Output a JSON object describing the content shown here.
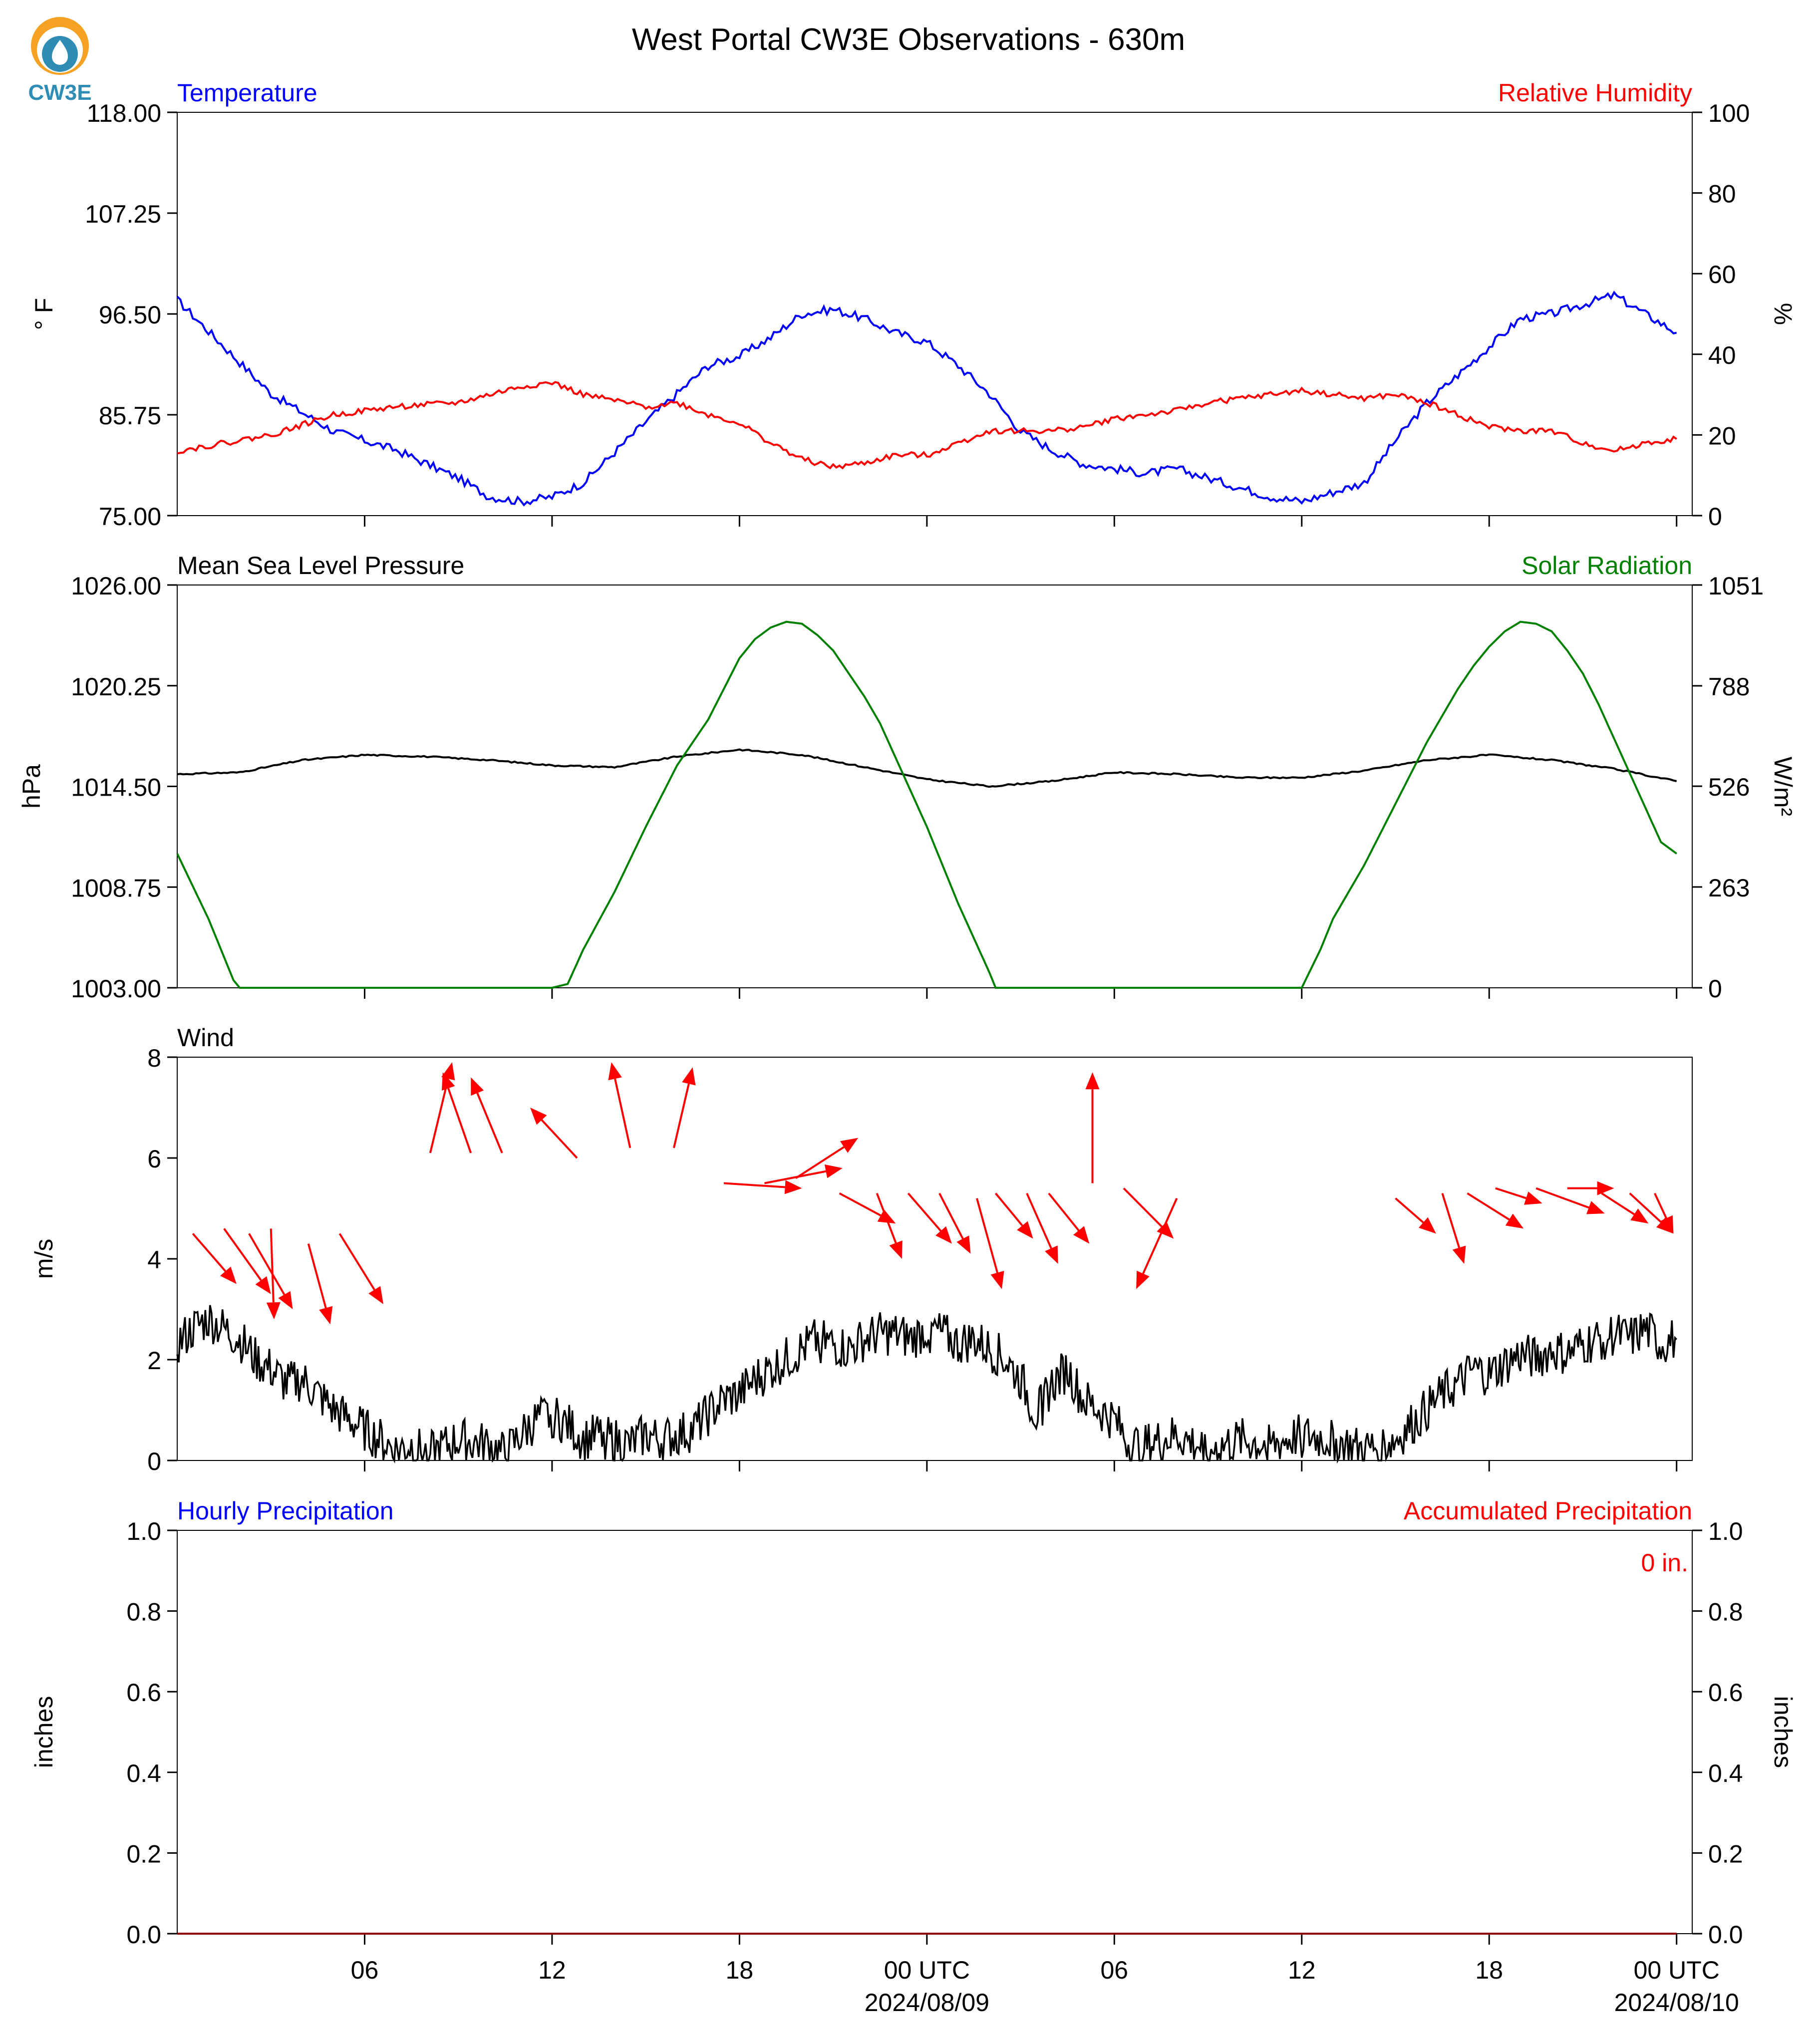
{
  "title": "West Portal CW3E Observations - 630m",
  "logo_text": "CW3E",
  "x_axis": {
    "tick_labels": [
      "06",
      "12",
      "18",
      "00 UTC",
      "06",
      "12",
      "18",
      "00 UTC"
    ],
    "date_labels": [
      "2024/08/09",
      "2024/08/10"
    ]
  },
  "chart_data": [
    {
      "type": "line",
      "title_left": "Temperature",
      "title_right": "Relative Humidity",
      "ylabel_left": "° F",
      "ylabel_right": "%",
      "ylim_left": [
        75.0,
        118.0
      ],
      "ylim_right": [
        0,
        100
      ],
      "yticks_left": [
        "75.00",
        "85.75",
        "96.50",
        "107.25",
        "118.00"
      ],
      "yticks_right": [
        "0",
        "20",
        "40",
        "60",
        "80",
        "100"
      ],
      "x_hours": [
        0,
        3,
        5,
        7,
        9,
        10,
        11,
        12,
        13,
        15,
        16,
        17,
        18,
        19,
        20,
        21,
        22,
        23,
        24,
        25,
        26,
        27,
        28,
        29,
        30,
        31,
        32,
        33,
        34,
        35,
        36,
        37,
        38,
        39,
        40,
        41,
        42,
        43,
        44,
        45,
        46,
        47,
        48
      ],
      "series": [
        {
          "name": "Temperature",
          "color": "#0000ff",
          "values": [
            98.0,
            88.0,
            84.0,
            82.0,
            79.0,
            77.0,
            76.5,
            77.0,
            78.5,
            85.0,
            88.0,
            91.0,
            92.0,
            94.0,
            96.5,
            97.0,
            96.0,
            94.5,
            93.5,
            91.0,
            88.0,
            84.0,
            82.0,
            80.5,
            80.0,
            79.5,
            80.0,
            79.0,
            78.0,
            77.0,
            76.5,
            77.5,
            78.5,
            83.0,
            87.0,
            90.0,
            93.0,
            96.0,
            96.5,
            97.5,
            98.5,
            96.5,
            94.5
          ]
        },
        {
          "name": "Relative Humidity",
          "color": "#ff0000",
          "values": [
            16,
            20,
            25,
            27,
            28,
            30,
            32,
            33,
            30,
            27,
            28,
            25,
            23,
            18,
            14,
            12,
            13,
            15,
            15,
            18,
            21,
            21,
            21,
            22,
            24,
            25,
            26,
            28,
            29,
            30,
            31,
            30,
            29,
            30,
            28,
            25,
            22,
            21,
            21,
            18,
            16,
            18,
            19
          ]
        }
      ]
    },
    {
      "type": "line",
      "title_left": "Mean Sea Level Pressure",
      "title_right": "Solar Radiation",
      "ylabel_left": "hPa",
      "ylabel_right": "W/m²",
      "ylim_left": [
        1003.0,
        1026.0
      ],
      "ylim_right": [
        0,
        1051
      ],
      "yticks_left": [
        "1003.00",
        "1008.75",
        "1014.50",
        "1020.25",
        "1026.00"
      ],
      "yticks_right": [
        "0",
        "263",
        "526",
        "788",
        "1051"
      ],
      "series": [
        {
          "name": "Mean Sea Level Pressure",
          "color": "#000000",
          "x_hours": [
            0,
            2,
            4,
            6,
            8,
            10,
            12,
            14,
            16,
            18,
            20,
            22,
            24,
            26,
            28,
            30,
            32,
            34,
            36,
            38,
            40,
            42,
            44,
            46,
            48
          ],
          "values": [
            1015.2,
            1015.3,
            1016.0,
            1016.3,
            1016.2,
            1016.0,
            1015.7,
            1015.6,
            1016.2,
            1016.6,
            1016.3,
            1015.6,
            1014.9,
            1014.5,
            1014.8,
            1015.3,
            1015.2,
            1015.0,
            1015.0,
            1015.4,
            1016.0,
            1016.3,
            1016.0,
            1015.5,
            1014.8
          ]
        },
        {
          "name": "Solar Radiation",
          "color": "#008000",
          "x_hours": [
            0,
            1,
            1.8,
            2,
            12,
            12.5,
            13,
            14,
            15,
            16,
            17,
            17.5,
            18,
            18.5,
            19,
            19.5,
            20,
            20.5,
            21,
            21.5,
            22,
            22.5,
            23,
            23.5,
            24,
            24.5,
            25,
            25.5,
            26,
            26.2,
            36,
            36.6,
            37,
            38,
            39,
            40,
            41,
            41.5,
            42,
            42.5,
            43,
            43.5,
            44,
            44.5,
            45,
            45.5,
            46,
            46.5,
            47,
            47.5,
            48
          ],
          "values": [
            350,
            180,
            20,
            0,
            0,
            10,
            100,
            250,
            420,
            580,
            700,
            780,
            860,
            910,
            940,
            955,
            950,
            920,
            880,
            820,
            760,
            690,
            600,
            510,
            420,
            320,
            220,
            130,
            40,
            0,
            0,
            100,
            180,
            320,
            480,
            640,
            780,
            840,
            890,
            930,
            955,
            950,
            930,
            880,
            820,
            740,
            650,
            560,
            470,
            380,
            350
          ]
        }
      ]
    },
    {
      "type": "line",
      "title_left": "Wind",
      "ylabel_left": "m/s",
      "ylim_left": [
        0,
        8
      ],
      "yticks_left": [
        "0",
        "2",
        "4",
        "6",
        "8"
      ],
      "series": [
        {
          "name": "Wind Speed",
          "color": "#000000",
          "x_hours": [
            0,
            0.5,
            1,
            1.5,
            2,
            2.5,
            3,
            3.5,
            4,
            4.5,
            5,
            5.5,
            6,
            6.5,
            7,
            7.5,
            8,
            9,
            10,
            10.5,
            11,
            11.5,
            12,
            12.5,
            13,
            13.5,
            14,
            14.5,
            15,
            15.5,
            16,
            16.5,
            17,
            17.5,
            18,
            18.5,
            19,
            19.5,
            20,
            20.5,
            21,
            21.5,
            22,
            22.5,
            23,
            23.5,
            24,
            24.5,
            25,
            25.5,
            26,
            26.5,
            27,
            27.5,
            28,
            28.5,
            29,
            29.5,
            30,
            30.5,
            31,
            32,
            33,
            34,
            35,
            36,
            37,
            38,
            38.5,
            39,
            39.5,
            40,
            40.5,
            41,
            41.5,
            42,
            42.5,
            43,
            43.5,
            44,
            44.5,
            45,
            45.5,
            46,
            46.5,
            47,
            47.5,
            48
          ],
          "values": [
            2.3,
            2.6,
            2.8,
            2.6,
            2.4,
            2.0,
            1.8,
            1.5,
            1.6,
            1.3,
            1.0,
            0.8,
            0.6,
            0.4,
            0.2,
            0.3,
            0.1,
            0.4,
            0.3,
            0.1,
            0.5,
            0.8,
            0.9,
            0.7,
            0.4,
            0.5,
            0.4,
            0.3,
            0.5,
            0.4,
            0.5,
            0.6,
            0.9,
            1.2,
            1.3,
            1.6,
            1.8,
            2.0,
            2.2,
            2.4,
            2.3,
            2.2,
            2.4,
            2.5,
            2.5,
            2.4,
            2.6,
            2.5,
            2.3,
            2.4,
            2.2,
            2.0,
            1.6,
            0.9,
            1.5,
            1.8,
            1.2,
            1.0,
            0.8,
            0.3,
            0.3,
            0.5,
            0.2,
            0.4,
            0.3,
            0.5,
            0.4,
            0.2,
            0.3,
            0.4,
            0.7,
            1.0,
            1.3,
            1.5,
            1.8,
            1.7,
            1.9,
            2.1,
            2.0,
            2.2,
            2.1,
            2.3,
            2.4,
            2.5,
            2.4,
            2.6,
            2.3,
            2.4
          ]
        },
        {
          "name": "Wind Direction",
          "color": "#ff0000",
          "arrows": [
            {
              "x": 0.5,
              "y": 4.5,
              "dx": 1.4,
              "dy": -1.0
            },
            {
              "x": 1.5,
              "y": 4.6,
              "dx": 1.5,
              "dy": -1.3
            },
            {
              "x": 2.3,
              "y": 4.5,
              "dx": 1.4,
              "dy": -1.5
            },
            {
              "x": 3.0,
              "y": 4.6,
              "dx": 0.1,
              "dy": -1.8
            },
            {
              "x": 4.2,
              "y": 4.3,
              "dx": 0.7,
              "dy": -1.6
            },
            {
              "x": 5.2,
              "y": 4.5,
              "dx": 1.4,
              "dy": -1.4
            },
            {
              "x": 8.1,
              "y": 6.1,
              "dx": 0.7,
              "dy": 1.8
            },
            {
              "x": 9.4,
              "y": 6.1,
              "dx": -0.9,
              "dy": 1.6
            },
            {
              "x": 10.4,
              "y": 6.1,
              "dx": -1.0,
              "dy": 1.5
            },
            {
              "x": 12.8,
              "y": 6.0,
              "dx": -1.5,
              "dy": 1.0
            },
            {
              "x": 14.5,
              "y": 6.2,
              "dx": -0.6,
              "dy": 1.7
            },
            {
              "x": 15.9,
              "y": 6.2,
              "dx": 0.6,
              "dy": 1.6
            },
            {
              "x": 17.5,
              "y": 5.5,
              "dx": 2.5,
              "dy": -0.1
            },
            {
              "x": 18.8,
              "y": 5.5,
              "dx": 2.5,
              "dy": 0.3
            },
            {
              "x": 19.8,
              "y": 5.6,
              "dx": 2.0,
              "dy": 0.8
            },
            {
              "x": 21.2,
              "y": 5.3,
              "dx": 1.8,
              "dy": -0.6
            },
            {
              "x": 22.4,
              "y": 5.3,
              "dx": 0.8,
              "dy": -1.3
            },
            {
              "x": 23.4,
              "y": 5.3,
              "dx": 1.4,
              "dy": -1.0
            },
            {
              "x": 24.4,
              "y": 5.3,
              "dx": 1.0,
              "dy": -1.2
            },
            {
              "x": 25.6,
              "y": 5.2,
              "dx": 0.8,
              "dy": -1.8
            },
            {
              "x": 26.2,
              "y": 5.3,
              "dx": 1.2,
              "dy": -0.9
            },
            {
              "x": 27.2,
              "y": 5.3,
              "dx": 1.0,
              "dy": -1.4
            },
            {
              "x": 27.9,
              "y": 5.3,
              "dx": 1.3,
              "dy": -1.0
            },
            {
              "x": 29.3,
              "y": 5.5,
              "dx": 0.0,
              "dy": 2.2
            },
            {
              "x": 30.3,
              "y": 5.4,
              "dx": 1.6,
              "dy": -1.0
            },
            {
              "x": 32.0,
              "y": 5.2,
              "dx": -1.3,
              "dy": -1.8
            },
            {
              "x": 39.0,
              "y": 5.2,
              "dx": 1.3,
              "dy": -0.7
            },
            {
              "x": 40.5,
              "y": 5.3,
              "dx": 0.7,
              "dy": -1.4
            },
            {
              "x": 41.3,
              "y": 5.3,
              "dx": 1.8,
              "dy": -0.7
            },
            {
              "x": 42.2,
              "y": 5.4,
              "dx": 1.5,
              "dy": -0.3
            },
            {
              "x": 43.5,
              "y": 5.4,
              "dx": 2.2,
              "dy": -0.5
            },
            {
              "x": 44.5,
              "y": 5.4,
              "dx": 1.5,
              "dy": 0.0
            },
            {
              "x": 45.6,
              "y": 5.3,
              "dx": 1.5,
              "dy": -0.6
            },
            {
              "x": 46.5,
              "y": 5.3,
              "dx": 1.4,
              "dy": -0.8
            },
            {
              "x": 47.3,
              "y": 5.3,
              "dx": 0.6,
              "dy": -0.8
            }
          ]
        }
      ]
    },
    {
      "type": "line",
      "title_left": "Hourly Precipitation",
      "title_right": "Accumulated Precipitation",
      "ylabel_left": "inches",
      "ylabel_right": "inches",
      "ylim_left": [
        0.0,
        1.0
      ],
      "ylim_right": [
        0.0,
        1.0
      ],
      "yticks_left": [
        "0.0",
        "0.2",
        "0.4",
        "0.6",
        "0.8",
        "1.0"
      ],
      "yticks_right": [
        "0.0",
        "0.2",
        "0.4",
        "0.6",
        "0.8",
        "1.0"
      ],
      "annotation": "0 in.",
      "series": [
        {
          "name": "Hourly Precipitation",
          "color": "#0000ff",
          "x_hours": [
            0,
            48
          ],
          "values": [
            0,
            0
          ]
        },
        {
          "name": "Accumulated Precipitation",
          "color": "#8b0000",
          "x_hours": [
            0,
            48
          ],
          "values": [
            0,
            0
          ]
        }
      ]
    }
  ]
}
